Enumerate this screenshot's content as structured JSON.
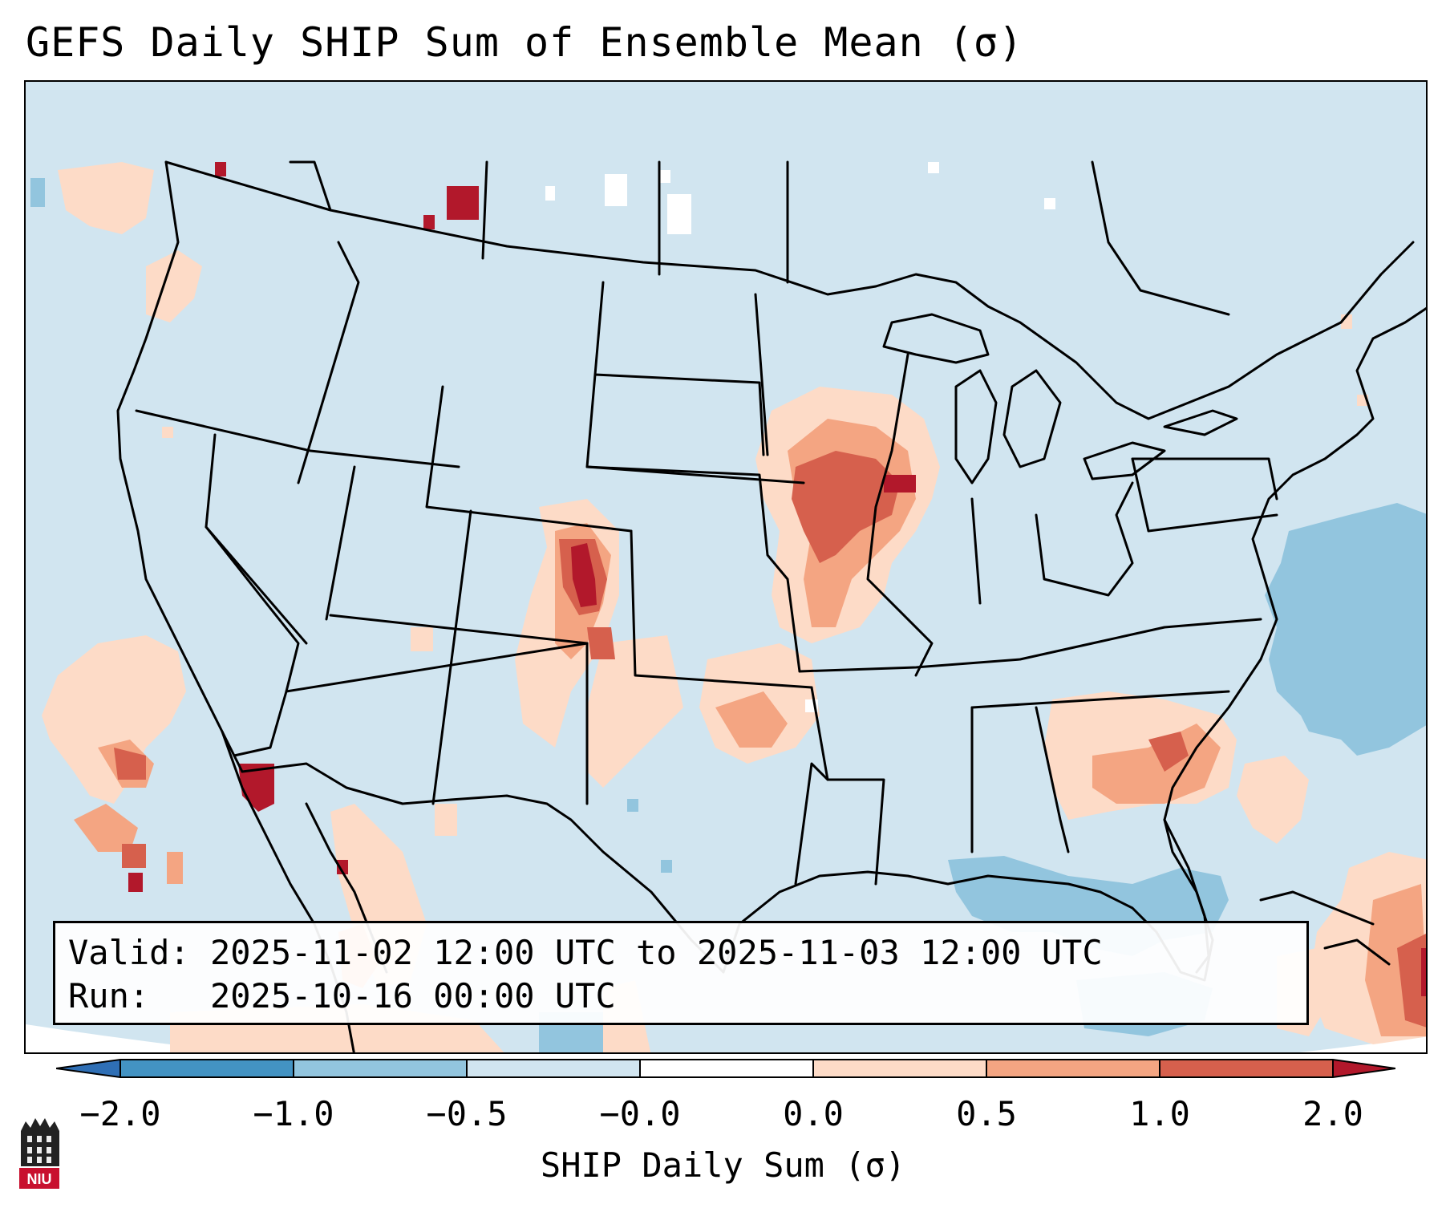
{
  "title": "GEFS Daily SHIP Sum of Ensemble Mean (σ)",
  "info": {
    "valid_label": "Valid:",
    "valid_value": "2025-11-02 12:00 UTC to 2025-11-03 12:00 UTC",
    "run_label": "Run:",
    "run_value": "2025-10-16 00:00 UTC"
  },
  "colorbar": {
    "label": "SHIP Daily Sum (σ)",
    "ticks": [
      "−2.0",
      "−1.0",
      "−0.5",
      "−0.0",
      "0.0",
      "0.5",
      "1.0",
      "2.0"
    ],
    "bins": [
      {
        "range": "< −2.0",
        "color": "#2f6fb5"
      },
      {
        "range": "−2.0 to −1.0",
        "color": "#4393c3"
      },
      {
        "range": "−1.0 to −0.5",
        "color": "#92c5de"
      },
      {
        "range": "−0.5 to −0.0",
        "color": "#d1e5f0"
      },
      {
        "range": "−0.0 to 0.0",
        "color": "#ffffff"
      },
      {
        "range": "0.0 to 0.5",
        "color": "#fddbc7"
      },
      {
        "range": "0.5 to 1.0",
        "color": "#f4a582"
      },
      {
        "range": "1.0 to 2.0",
        "color": "#d6604d"
      },
      {
        "range": "> 2.0",
        "color": "#b2182b"
      }
    ]
  },
  "map": {
    "projection": "Lambert conformal, CONUS domain",
    "features": [
      "state boundaries",
      "coastlines",
      "international borders"
    ]
  },
  "logo": {
    "text": "NIU",
    "icon": "university-tower-icon"
  }
}
